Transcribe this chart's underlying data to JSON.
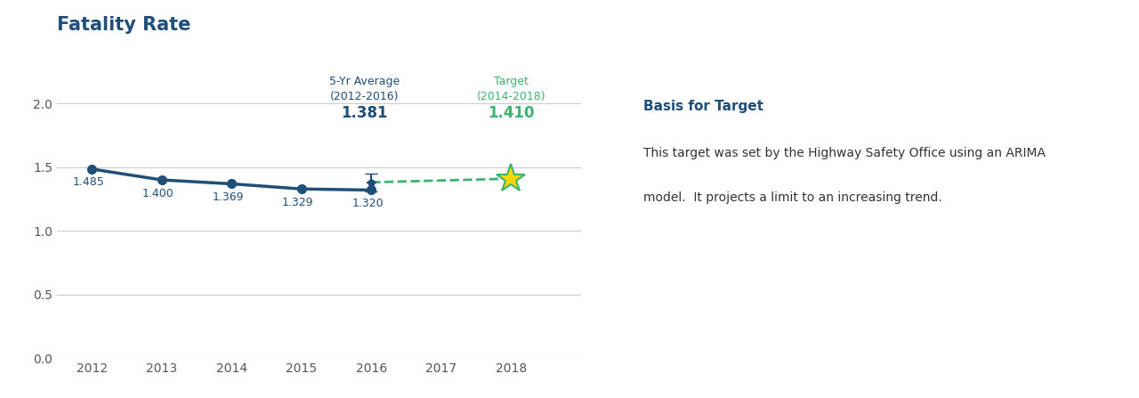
{
  "title": "Fatality Rate",
  "title_color": "#1F4E79",
  "title_fontsize": 15,
  "years": [
    2012,
    2013,
    2014,
    2015,
    2016
  ],
  "values": [
    1.485,
    1.4,
    1.369,
    1.329,
    1.32
  ],
  "line_color": "#1F4E79",
  "dashed_line_x": [
    2016,
    2018
  ],
  "dashed_line_y": [
    1.381,
    1.41
  ],
  "dashed_line_color": "#3CB371",
  "avg_year": 2016,
  "avg_value": 1.381,
  "target_year": 2018,
  "target_value": 1.41,
  "avg_label_line1": "5-Yr Average",
  "avg_label_line2": "(2012-2016)",
  "avg_label_value": "1.381",
  "avg_label_color": "#1F4E79",
  "target_label_line1": "Target",
  "target_label_line2": "(2014-2018)",
  "target_label_value": "1.410",
  "target_label_color": "#3CB371",
  "star_color_face": "#FFD700",
  "star_color_edge": "#3CB371",
  "basis_title": "Basis for Target",
  "basis_title_color": "#1F4E79",
  "basis_text_line1": "This target was set by the Highway Safety Office using an ARIMA",
  "basis_text_line2": "model.  It projects a limit to an increasing trend.",
  "basis_text_color": "#333333",
  "xlim": [
    2011.5,
    2019.0
  ],
  "ylim": [
    0.0,
    2.25
  ],
  "yticks": [
    0.0,
    0.5,
    1.0,
    1.5,
    2.0
  ],
  "xticks": [
    2012,
    2013,
    2014,
    2015,
    2016,
    2017,
    2018
  ],
  "bg_color": "#FFFFFF",
  "grid_color": "#CCCCCC",
  "marker_size": 7,
  "line_width": 2.5,
  "value_label_fontsize": 9,
  "axis_label_fontsize": 10,
  "annotation_fontsize": 9,
  "annotation_value_fontsize": 12
}
